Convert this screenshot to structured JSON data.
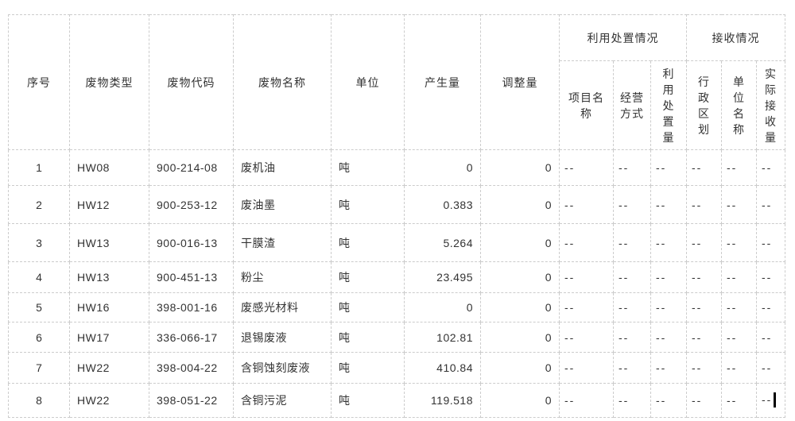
{
  "colors": {
    "background": "#ffffff",
    "border": "#cccccc",
    "text": "#333333",
    "caret": "#000000"
  },
  "table": {
    "headers": {
      "no": "序号",
      "waste_type": "废物类型",
      "waste_code": "废物代码",
      "waste_name": "废物名称",
      "unit": "单位",
      "produced": "产生量",
      "adjusted": "调整量",
      "disposal_group": "利用处置情况",
      "receive_group": "接收情况",
      "project_name": "项目名称",
      "business_mode": "经营方式",
      "disposal_amount": "利用处置量",
      "admin_division": "行政区划",
      "unit_name": "单位名称",
      "received_amount": "实际接收量"
    },
    "caret_position": {
      "row_index": 7,
      "column": "received_amount"
    },
    "rows": [
      {
        "no": "1",
        "waste_type": "HW08",
        "waste_code": "900-214-08",
        "waste_name": "废机油",
        "unit": "吨",
        "produced": "0",
        "adjusted": "0",
        "project_name": "--",
        "business_mode": "--",
        "disposal_amount": "--",
        "admin_division": "--",
        "unit_name": "--",
        "received_amount": "--"
      },
      {
        "no": "2",
        "waste_type": "HW12",
        "waste_code": "900-253-12",
        "waste_name": "废油墨",
        "unit": "吨",
        "produced": "0.383",
        "adjusted": "0",
        "project_name": "--",
        "business_mode": "--",
        "disposal_amount": "--",
        "admin_division": "--",
        "unit_name": "--",
        "received_amount": "--"
      },
      {
        "no": "3",
        "waste_type": "HW13",
        "waste_code": "900-016-13",
        "waste_name": "干膜渣",
        "unit": "吨",
        "produced": "5.264",
        "adjusted": "0",
        "project_name": "--",
        "business_mode": "--",
        "disposal_amount": "--",
        "admin_division": "--",
        "unit_name": "--",
        "received_amount": "--"
      },
      {
        "no": "4",
        "waste_type": "HW13",
        "waste_code": "900-451-13",
        "waste_name": "粉尘",
        "unit": "吨",
        "produced": "23.495",
        "adjusted": "0",
        "project_name": "--",
        "business_mode": "--",
        "disposal_amount": "--",
        "admin_division": "--",
        "unit_name": "--",
        "received_amount": "--"
      },
      {
        "no": "5",
        "waste_type": "HW16",
        "waste_code": "398-001-16",
        "waste_name": "废感光材料",
        "unit": "吨",
        "produced": "0",
        "adjusted": "0",
        "project_name": "--",
        "business_mode": "--",
        "disposal_amount": "--",
        "admin_division": "--",
        "unit_name": "--",
        "received_amount": "--"
      },
      {
        "no": "6",
        "waste_type": "HW17",
        "waste_code": "336-066-17",
        "waste_name": "退锡废液",
        "unit": "吨",
        "produced": "102.81",
        "adjusted": "0",
        "project_name": "--",
        "business_mode": "--",
        "disposal_amount": "--",
        "admin_division": "--",
        "unit_name": "--",
        "received_amount": "--"
      },
      {
        "no": "7",
        "waste_type": "HW22",
        "waste_code": "398-004-22",
        "waste_name": "含铜蚀刻废液",
        "unit": "吨",
        "produced": "410.84",
        "adjusted": "0",
        "project_name": "--",
        "business_mode": "--",
        "disposal_amount": "--",
        "admin_division": "--",
        "unit_name": "--",
        "received_amount": "--"
      },
      {
        "no": "8",
        "waste_type": "HW22",
        "waste_code": "398-051-22",
        "waste_name": "含铜污泥",
        "unit": "吨",
        "produced": "119.518",
        "adjusted": "0",
        "project_name": "--",
        "business_mode": "--",
        "disposal_amount": "--",
        "admin_division": "--",
        "unit_name": "--",
        "received_amount": "--"
      }
    ]
  }
}
